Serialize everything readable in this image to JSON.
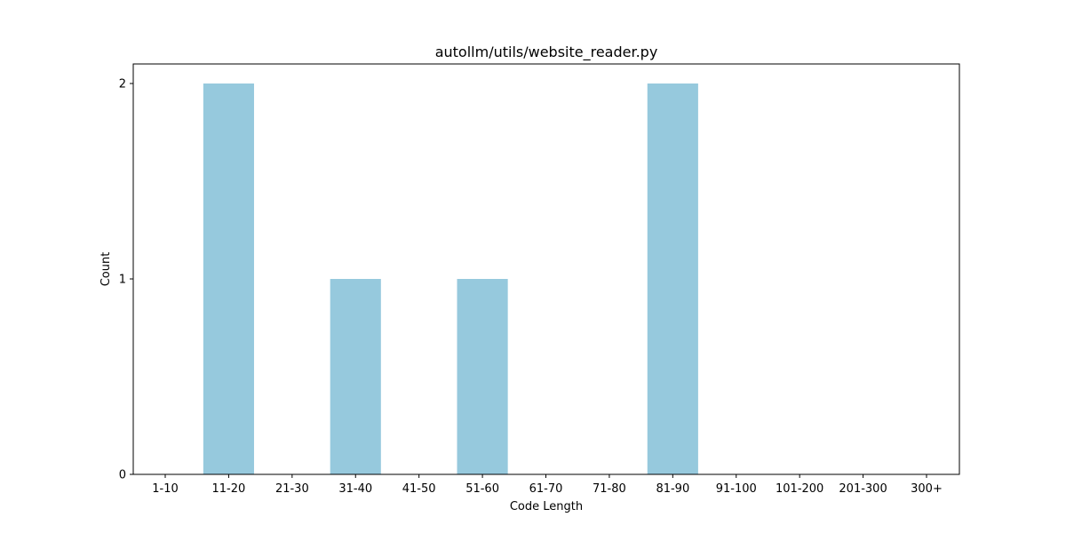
{
  "chart_data": {
    "type": "bar",
    "title": "autollm/utils/website_reader.py",
    "xlabel": "Code Length",
    "ylabel": "Count",
    "categories": [
      "1-10",
      "11-20",
      "21-30",
      "31-40",
      "41-50",
      "51-60",
      "61-70",
      "71-80",
      "81-90",
      "91-100",
      "101-200",
      "201-300",
      "300+"
    ],
    "values": [
      0,
      2,
      0,
      1,
      0,
      1,
      0,
      0,
      2,
      0,
      0,
      0,
      0
    ],
    "ylim": [
      0,
      2.1
    ],
    "yticks": [
      0,
      1,
      2
    ],
    "bar_color": "#96c9dd",
    "grid": false,
    "legend": "none"
  }
}
